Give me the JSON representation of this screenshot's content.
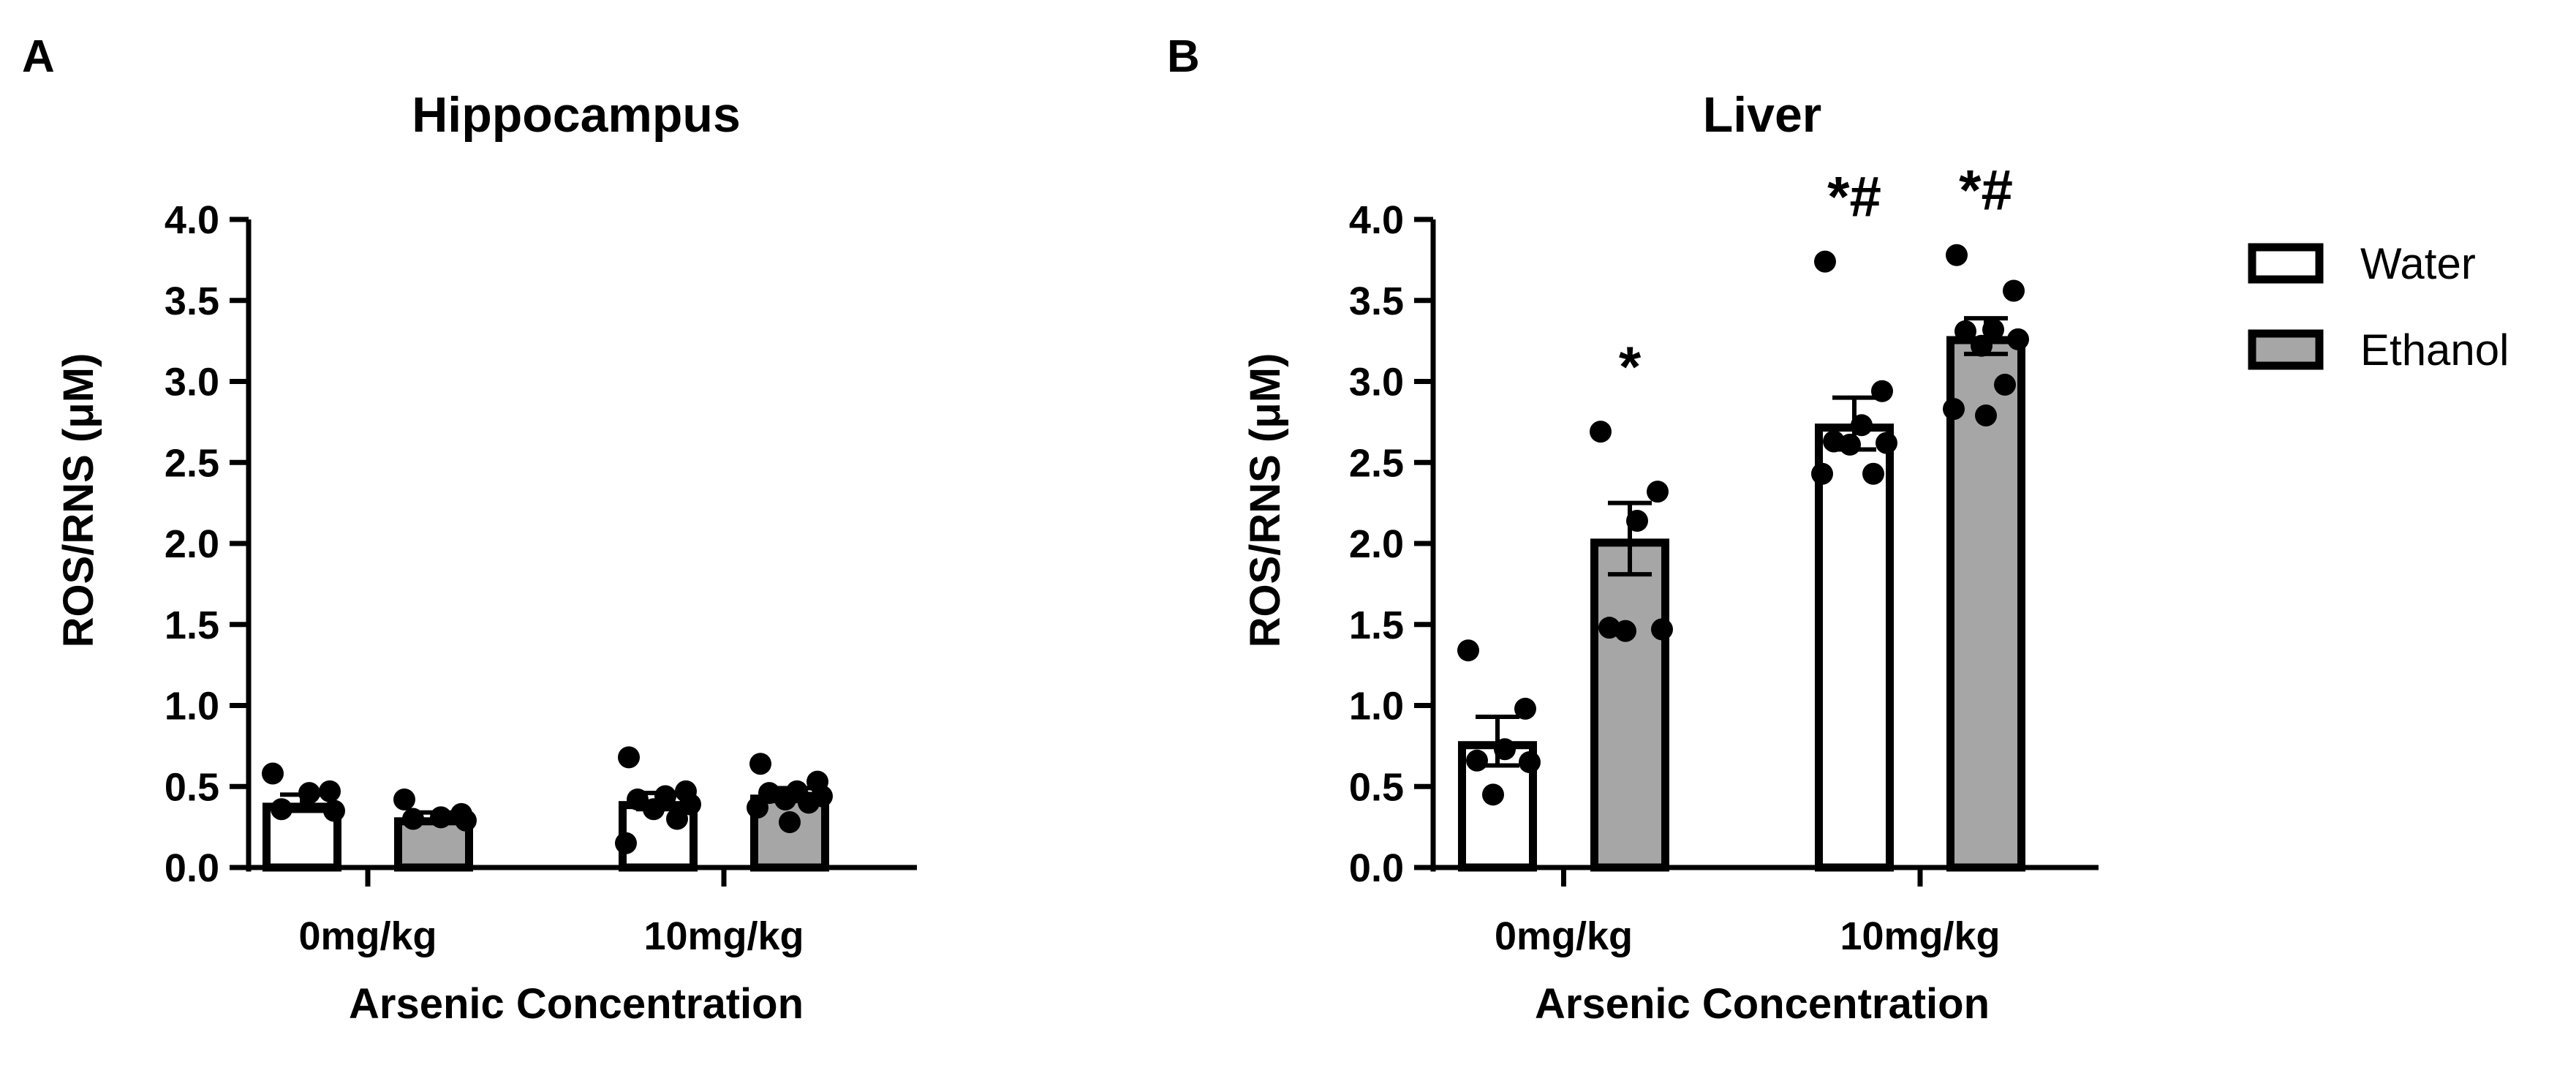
{
  "colors": {
    "water": "#ffffff",
    "ethanol": "#a6a6a6",
    "stroke": "#000000",
    "dot": "#000000"
  },
  "legend": [
    {
      "label": "Water",
      "color": "#ffffff"
    },
    {
      "label": "Ethanol",
      "color": "#a6a6a6"
    }
  ],
  "chart_data": [
    {
      "type": "bar",
      "panel": "A",
      "title": "Hippocampus",
      "xlabel": "Arsenic Concentration",
      "ylabel": "ROS/RNS (μM)",
      "ylim": [
        0,
        4.0
      ],
      "yticks": [
        "0.0",
        "0.5",
        "1.0",
        "1.5",
        "2.0",
        "2.5",
        "3.0",
        "3.5",
        "4.0"
      ],
      "categories": [
        "0mg/kg",
        "10mg/kg"
      ],
      "series": [
        {
          "name": "Water",
          "values": [
            0.4,
            0.41
          ],
          "errors": [
            0.05,
            0.05
          ],
          "points": [
            [
              0.58,
              0.47,
              0.46,
              0.36,
              0.35
            ],
            [
              0.68,
              0.47,
              0.44,
              0.42,
              0.39,
              0.36,
              0.3,
              0.15
            ]
          ],
          "significance": [
            "",
            ""
          ]
        },
        {
          "name": "Ethanol",
          "values": [
            0.31,
            0.45
          ],
          "errors": [
            0.03,
            0.04
          ],
          "points": [
            [
              0.42,
              0.33,
              0.31,
              0.3,
              0.29
            ],
            [
              0.64,
              0.53,
              0.47,
              0.46,
              0.44,
              0.42,
              0.4,
              0.37,
              0.28
            ]
          ],
          "significance": [
            "",
            ""
          ]
        }
      ]
    },
    {
      "type": "bar",
      "panel": "B",
      "title": "Liver",
      "xlabel": "Arsenic Concentration",
      "ylabel": "ROS/RNS (μM)",
      "ylim": [
        0,
        4.0
      ],
      "yticks": [
        "0.0",
        "0.5",
        "1.0",
        "1.5",
        "2.0",
        "2.5",
        "3.0",
        "3.5",
        "4.0"
      ],
      "categories": [
        "0mg/kg",
        "10mg/kg"
      ],
      "series": [
        {
          "name": "Water",
          "values": [
            0.78,
            2.74
          ],
          "errors": [
            0.15,
            0.16
          ],
          "points": [
            [
              1.34,
              0.98,
              0.73,
              0.66,
              0.65,
              0.45
            ],
            [
              3.74,
              2.94,
              2.73,
              2.63,
              2.62,
              2.61,
              2.43,
              2.43
            ]
          ],
          "significance": [
            "",
            "*#"
          ]
        },
        {
          "name": "Ethanol",
          "values": [
            2.03,
            3.28
          ],
          "errors": [
            0.22,
            0.11
          ],
          "points": [
            [
              2.69,
              2.32,
              2.14,
              1.48,
              1.47,
              1.46
            ],
            [
              3.78,
              3.56,
              3.32,
              3.31,
              3.26,
              3.22,
              2.98,
              2.83,
              2.79
            ]
          ],
          "significance": [
            "*",
            "*#"
          ]
        }
      ]
    }
  ]
}
